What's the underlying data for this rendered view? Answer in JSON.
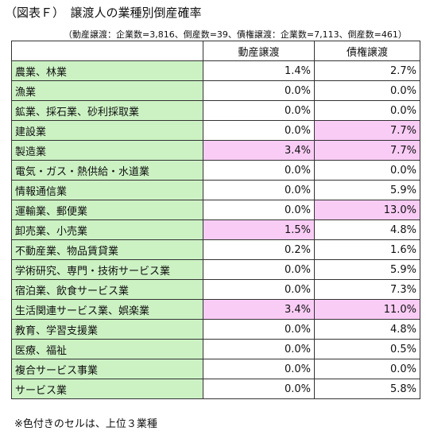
{
  "header": {
    "title": "（図表Ｆ）　譲渡人の業種別倒産確率",
    "note": "（動産譲渡：企業数=3,816、倒産数=39、債権譲渡：企業数=7,113、倒産数=461）"
  },
  "table": {
    "columns": [
      "動産譲渡",
      "債権譲渡"
    ],
    "label_color": "#ccf2c4",
    "highlight_color": "#f9ccf5",
    "rows": [
      {
        "industry": "農業、林業",
        "cells": [
          "1.4%",
          "2.7%"
        ],
        "highlight": [
          false,
          false
        ]
      },
      {
        "industry": "漁業",
        "cells": [
          "0.0%",
          "0.0%"
        ],
        "highlight": [
          false,
          false
        ]
      },
      {
        "industry": "鉱業、採石業、砂利採取業",
        "cells": [
          "0.0%",
          "0.0%"
        ],
        "highlight": [
          false,
          false
        ]
      },
      {
        "industry": "建設業",
        "cells": [
          "0.0%",
          "7.7%"
        ],
        "highlight": [
          false,
          true
        ]
      },
      {
        "industry": "製造業",
        "cells": [
          "3.4%",
          "7.7%"
        ],
        "highlight": [
          true,
          true
        ]
      },
      {
        "industry": "電気・ガス・熱供給・水道業",
        "cells": [
          "0.0%",
          "0.0%"
        ],
        "highlight": [
          false,
          false
        ]
      },
      {
        "industry": "情報通信業",
        "cells": [
          "0.0%",
          "5.9%"
        ],
        "highlight": [
          false,
          false
        ]
      },
      {
        "industry": "運輸業、郵便業",
        "cells": [
          "0.0%",
          "13.0%"
        ],
        "highlight": [
          false,
          true
        ]
      },
      {
        "industry": "卸売業、小売業",
        "cells": [
          "1.5%",
          "4.8%"
        ],
        "highlight": [
          true,
          false
        ]
      },
      {
        "industry": "不動産業、物品賃貸業",
        "cells": [
          "0.2%",
          "1.6%"
        ],
        "highlight": [
          false,
          false
        ]
      },
      {
        "industry": "学術研究、専門・技術サービス業",
        "cells": [
          "0.0%",
          "5.9%"
        ],
        "highlight": [
          false,
          false
        ]
      },
      {
        "industry": "宿泊業、飲食サービス業",
        "cells": [
          "0.0%",
          "7.3%"
        ],
        "highlight": [
          false,
          false
        ]
      },
      {
        "industry": "生活関連サービス業、娯楽業",
        "cells": [
          "3.4%",
          "11.0%"
        ],
        "highlight": [
          true,
          true
        ]
      },
      {
        "industry": "教育、学習支援業",
        "cells": [
          "0.0%",
          "4.8%"
        ],
        "highlight": [
          false,
          false
        ]
      },
      {
        "industry": "医療、福祉",
        "cells": [
          "0.0%",
          "0.5%"
        ],
        "highlight": [
          false,
          false
        ]
      },
      {
        "industry": "複合サービス事業",
        "cells": [
          "0.0%",
          "0.0%"
        ],
        "highlight": [
          false,
          false
        ]
      },
      {
        "industry": "サービス業",
        "cells": [
          "0.0%",
          "5.8%"
        ],
        "highlight": [
          false,
          false
        ]
      }
    ]
  },
  "footnote": "※色付きのセルは、上位３業種"
}
